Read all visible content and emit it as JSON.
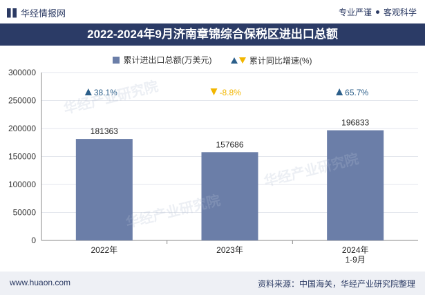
{
  "header": {
    "brand": "华经情报网",
    "slogan_left": "专业严谨",
    "slogan_right": "客观科学",
    "title": "2022-2024年9月济南章锦综合保税区进出口总额"
  },
  "legend": {
    "bar_label": "累计进出口总额(万美元)",
    "growth_label": "累计同比增速(%)"
  },
  "footer": {
    "url": "www.huaon.com",
    "source": "资料来源：中国海关，华经产业研究院整理"
  },
  "watermark": "华经产业研究院",
  "colors": {
    "bar": "#6b7ea8",
    "up": "#2c5f8a",
    "down": "#f2b600",
    "title_bg": "#2b3b66"
  },
  "chart_data": {
    "type": "bar",
    "categories": [
      "2022年",
      "2023年",
      "2024年\n1-9月"
    ],
    "series": [
      {
        "name": "累计进出口总额(万美元)",
        "values": [
          181363,
          157686,
          196833
        ]
      }
    ],
    "growth": {
      "name": "累计同比增速(%)",
      "values": [
        38.1,
        -8.8,
        65.7
      ],
      "labels": [
        "38.1%",
        "-8.8%",
        "65.7%"
      ]
    },
    "yticks": [
      0,
      50000,
      100000,
      150000,
      200000,
      250000,
      300000
    ],
    "ylim": [
      0,
      300000
    ],
    "title": "2022-2024年9月济南章锦综合保税区进出口总额",
    "legend_position": "top"
  }
}
